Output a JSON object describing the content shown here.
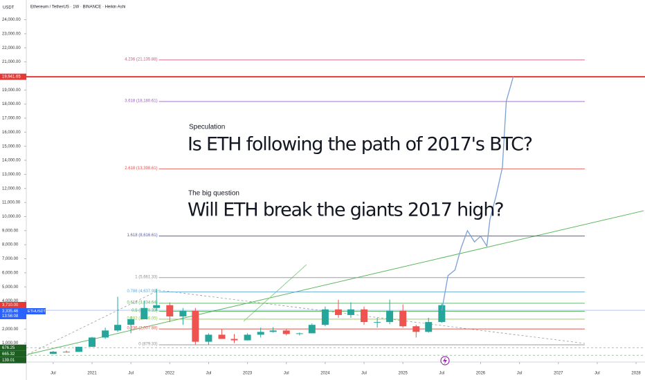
{
  "chart_data": {
    "type": "candlestick",
    "title": "Ethereum / TetherUS · 1W · BINANCE · Heikin Ashi",
    "currency": "USDT",
    "annotations": [
      {
        "small": "Speculation",
        "big": "Is ETH following the path of 2017's BTC?"
      },
      {
        "small": "The big question",
        "big": "Will ETH break the giants 2017 high?"
      }
    ],
    "x": [
      2020.5,
      2020.67,
      2020.83,
      2021.0,
      2021.17,
      2021.33,
      2021.5,
      2021.67,
      2021.83,
      2022.0,
      2022.17,
      2022.33,
      2022.5,
      2022.67,
      2022.83,
      2023.0,
      2023.17,
      2023.33,
      2023.5,
      2023.67,
      2023.83,
      2024.0,
      2024.17,
      2024.33,
      2024.5,
      2024.67,
      2024.83,
      2025.0,
      2025.17,
      2025.33,
      2025.5
    ],
    "open": [
      230,
      390,
      380,
      740,
      1400,
      1900,
      2300,
      2700,
      3500,
      3700,
      2900,
      3300,
      1100,
      1600,
      1300,
      1200,
      1600,
      1800,
      1900,
      1650,
      1700,
      2300,
      3400,
      3000,
      3400,
      2500,
      2500,
      3300,
      2200,
      1800,
      2500
    ],
    "close": [
      390,
      380,
      740,
      1400,
      1900,
      2300,
      2700,
      3500,
      3700,
      2900,
      3300,
      1100,
      1600,
      1300,
      1200,
      1600,
      1800,
      1900,
      1650,
      1700,
      2300,
      3400,
      3000,
      3400,
      2500,
      2500,
      3300,
      2200,
      1800,
      2500,
      3700
    ],
    "high": [
      445,
      480,
      750,
      1450,
      2100,
      4300,
      2900,
      4000,
      4870,
      3900,
      3500,
      3500,
      1700,
      2000,
      1650,
      1700,
      2100,
      2140,
      2000,
      1750,
      2400,
      3600,
      4090,
      3900,
      3600,
      2800,
      4100,
      3750,
      2300,
      2800,
      3800
    ],
    "low": [
      220,
      330,
      370,
      720,
      1300,
      1800,
      1700,
      2700,
      3300,
      2500,
      2300,
      900,
      880,
      1300,
      1000,
      1190,
      1400,
      1750,
      1550,
      1550,
      1700,
      2200,
      2800,
      2800,
      2300,
      2100,
      2350,
      2100,
      1400,
      1750,
      2450
    ],
    "up_color": "#26a69a",
    "down_color": "#ef5350",
    "projection": {
      "color": "#7a9fd6",
      "x": [
        2025.5,
        2025.58,
        2025.67,
        2025.75,
        2025.83,
        2025.92,
        2026.0,
        2026.08,
        2026.12,
        2026.2,
        2026.28,
        2026.33,
        2026.42
      ],
      "y": [
        3300,
        5800,
        6200,
        7800,
        9000,
        8200,
        8600,
        7900,
        9800,
        11500,
        13500,
        18200,
        19950
      ]
    },
    "fib_x": [
      2021.86,
      2027.34
    ],
    "fib_levels": [
      {
        "label": "4.236 (21,135.88)",
        "value": 21135.88,
        "color": "#d0587e"
      },
      {
        "label": "3.618 (18,180.61)",
        "value": 18180.61,
        "color": "#9c5bc4"
      },
      {
        "label": "2.618 (13,398.61)",
        "value": 13398.61,
        "color": "#e0534e"
      },
      {
        "label": "1.618 (8,616.61)",
        "value": 8616.61,
        "color": "#4d5bc0"
      },
      {
        "label": "1 (5,661.33)",
        "value": 5661.33,
        "color": "#8a8d96"
      },
      {
        "label": "0.786 (4,637.98)",
        "value": 4637.98,
        "color": "#5fa8d8"
      },
      {
        "label": "0.618 (3,834.64)",
        "value": 3834.64,
        "color": "#4caf50"
      },
      {
        "label": "0.5 (3,270.33)",
        "value": 3270.33,
        "color": "#4caf50"
      },
      {
        "label": "0.382 (2,706.05)",
        "value": 2706.05,
        "color": "#8bc34a"
      },
      {
        "label": "0.236 (2,007.88)",
        "value": 2007.88,
        "color": "#e0534e"
      },
      {
        "label": "0 (879.33)",
        "value": 879.33,
        "color": "#8a8d96"
      }
    ],
    "trendlines": [
      {
        "x": [
          2020.17,
          2028.1
        ],
        "y": [
          197,
          10418
        ],
        "color": "#5cb85c",
        "dashed": false
      },
      {
        "x": [
          2022.95,
          2023.76
        ],
        "y": [
          2555,
          6585
        ],
        "color": "#8fd08f",
        "dashed": false
      },
      {
        "x": [
          2020.17,
          2021.86
        ],
        "y": [
          197,
          4767
        ],
        "color": "#999999",
        "dashed": true
      },
      {
        "x": [
          2021.86,
          2027.34
        ],
        "y": [
          4767,
          983
        ],
        "color": "#999999",
        "dashed": true
      }
    ],
    "price_lines": [
      {
        "label": "19,941.65",
        "value": 19941.65,
        "color": "#e53935",
        "line": true,
        "dashed": false
      },
      {
        "label": "3,710.00",
        "value": 3710,
        "color": "#e53935",
        "line": false,
        "dashed": false
      },
      {
        "label": "3,335.46",
        "value": 3335.46,
        "color": "#2962ff",
        "line": true,
        "dashed": false,
        "symbol": "ETHUSDT",
        "timer": "13:56:08"
      },
      {
        "label": "676.25",
        "value": 676.25,
        "color": "#1b5e20",
        "line": true,
        "dashed": true
      },
      {
        "label": "665.32",
        "value": 665.32,
        "color": "#1b5e20",
        "line": false,
        "dashed": false
      },
      {
        "label": "139.01",
        "value": 139.01,
        "color": "#1b5e20",
        "line": true,
        "dashed": true
      }
    ],
    "xlim": [
      2020.154,
      2028.115
    ],
    "ylim": [
      0,
      25400
    ],
    "xticks": [
      {
        "value": 2020.5,
        "label": "Jul"
      },
      {
        "value": 2021,
        "label": "2021"
      },
      {
        "value": 2021.5,
        "label": "Jul"
      },
      {
        "value": 2022,
        "label": "2022"
      },
      {
        "value": 2022.5,
        "label": "Jul"
      },
      {
        "value": 2023,
        "label": "2023"
      },
      {
        "value": 2023.5,
        "label": "Jul"
      },
      {
        "value": 2024,
        "label": "2024"
      },
      {
        "value": 2024.5,
        "label": "Jul"
      },
      {
        "value": 2025,
        "label": "2025"
      },
      {
        "value": 2025.5,
        "label": "Jul"
      },
      {
        "value": 2026,
        "label": "2026"
      },
      {
        "value": 2026.5,
        "label": "Jul"
      },
      {
        "value": 2027,
        "label": "2027"
      },
      {
        "value": 2027.5,
        "label": "Jul"
      },
      {
        "value": 2028,
        "label": "2028"
      }
    ],
    "yticks": [
      {
        "value": 1000,
        "label": "1,000.00"
      },
      {
        "value": 2000,
        "label": "2,000.00"
      },
      {
        "value": 4000,
        "label": "4,000.00"
      },
      {
        "value": 5000,
        "label": "5,000.00"
      },
      {
        "value": 6000,
        "label": "6,000.00"
      },
      {
        "value": 7000,
        "label": "7,000.00"
      },
      {
        "value": 8000,
        "label": "8,000.00"
      },
      {
        "value": 9000,
        "label": "9,000.00"
      },
      {
        "value": 10000,
        "label": "10,000.00"
      },
      {
        "value": 11000,
        "label": "11,000.00"
      },
      {
        "value": 12000,
        "label": "12,000.00"
      },
      {
        "value": 13000,
        "label": "13,000.00"
      },
      {
        "value": 14000,
        "label": "14,000.00"
      },
      {
        "value": 15000,
        "label": "15,000.00"
      },
      {
        "value": 16000,
        "label": "16,000.00"
      },
      {
        "value": 17000,
        "label": "17,000.00"
      },
      {
        "value": 18000,
        "label": "18,000.00"
      },
      {
        "value": 19000,
        "label": "19,000.00"
      },
      {
        "value": 21000,
        "label": "21,000.00"
      },
      {
        "value": 22000,
        "label": "22,000.00"
      },
      {
        "value": 23000,
        "label": "23,000.00"
      },
      {
        "value": 24000,
        "label": "24,000.00"
      }
    ]
  }
}
